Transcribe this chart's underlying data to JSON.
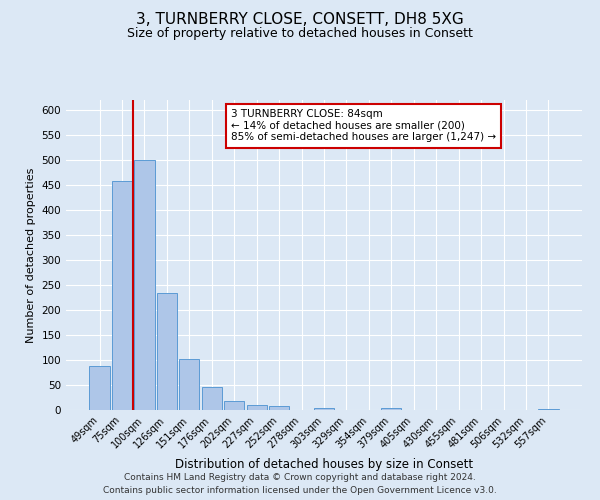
{
  "title": "3, TURNBERRY CLOSE, CONSETT, DH8 5XG",
  "subtitle": "Size of property relative to detached houses in Consett",
  "xlabel": "Distribution of detached houses by size in Consett",
  "ylabel": "Number of detached properties",
  "bar_labels": [
    "49sqm",
    "75sqm",
    "100sqm",
    "126sqm",
    "151sqm",
    "176sqm",
    "202sqm",
    "227sqm",
    "252sqm",
    "278sqm",
    "303sqm",
    "329sqm",
    "354sqm",
    "379sqm",
    "405sqm",
    "430sqm",
    "455sqm",
    "481sqm",
    "506sqm",
    "532sqm",
    "557sqm"
  ],
  "bar_values": [
    88,
    458,
    500,
    235,
    103,
    46,
    19,
    11,
    8,
    0,
    5,
    0,
    0,
    5,
    0,
    0,
    0,
    0,
    0,
    0,
    2
  ],
  "bar_color": "#aec6e8",
  "bar_edge_color": "#5b9bd5",
  "ylim": [
    0,
    620
  ],
  "yticks": [
    0,
    50,
    100,
    150,
    200,
    250,
    300,
    350,
    400,
    450,
    500,
    550,
    600
  ],
  "vline_color": "#cc0000",
  "annotation_text": "3 TURNBERRY CLOSE: 84sqm\n← 14% of detached houses are smaller (200)\n85% of semi-detached houses are larger (1,247) →",
  "annotation_box_color": "#ffffff",
  "annotation_box_edge_color": "#cc0000",
  "footer_line1": "Contains HM Land Registry data © Crown copyright and database right 2024.",
  "footer_line2": "Contains public sector information licensed under the Open Government Licence v3.0.",
  "background_color": "#dce8f5",
  "plot_bg_color": "#dce8f5",
  "grid_color": "#ffffff",
  "title_fontsize": 11,
  "subtitle_fontsize": 9,
  "footer_fontsize": 6.5
}
